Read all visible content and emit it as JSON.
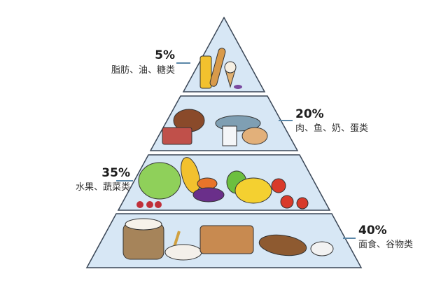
{
  "colors": {
    "tier_fill": "#d7e7f5",
    "tier_stroke": "#3a4656",
    "connector": "#5b87a8"
  },
  "tiers": [
    {
      "percent": "5%",
      "label": "脂肪、油、糖类",
      "value": 5,
      "icons": [
        "oil-bottle-icon",
        "bread-icon",
        "ice-cream-icon",
        "candy-icon"
      ]
    },
    {
      "percent": "20%",
      "label": "肉、鱼、奶、蛋类",
      "value": 20,
      "icons": [
        "chicken-icon",
        "meat-icon",
        "fish-icon",
        "milk-icon",
        "eggs-icon"
      ]
    },
    {
      "percent": "35%",
      "label": "水果、蔬菜类",
      "value": 35,
      "icons": [
        "cabbage-icon",
        "corn-icon",
        "eggplant-icon",
        "carrot-icon",
        "grapes-icon",
        "banana-icon",
        "tomato-icon",
        "apple-icon"
      ]
    },
    {
      "percent": "40%",
      "label": "面食、谷物类",
      "value": 40,
      "icons": [
        "flour-sack-icon",
        "wheat-icon",
        "buns-icon",
        "bread-loaf-icon",
        "baguette-icon",
        "rice-bowl-icon"
      ]
    }
  ]
}
